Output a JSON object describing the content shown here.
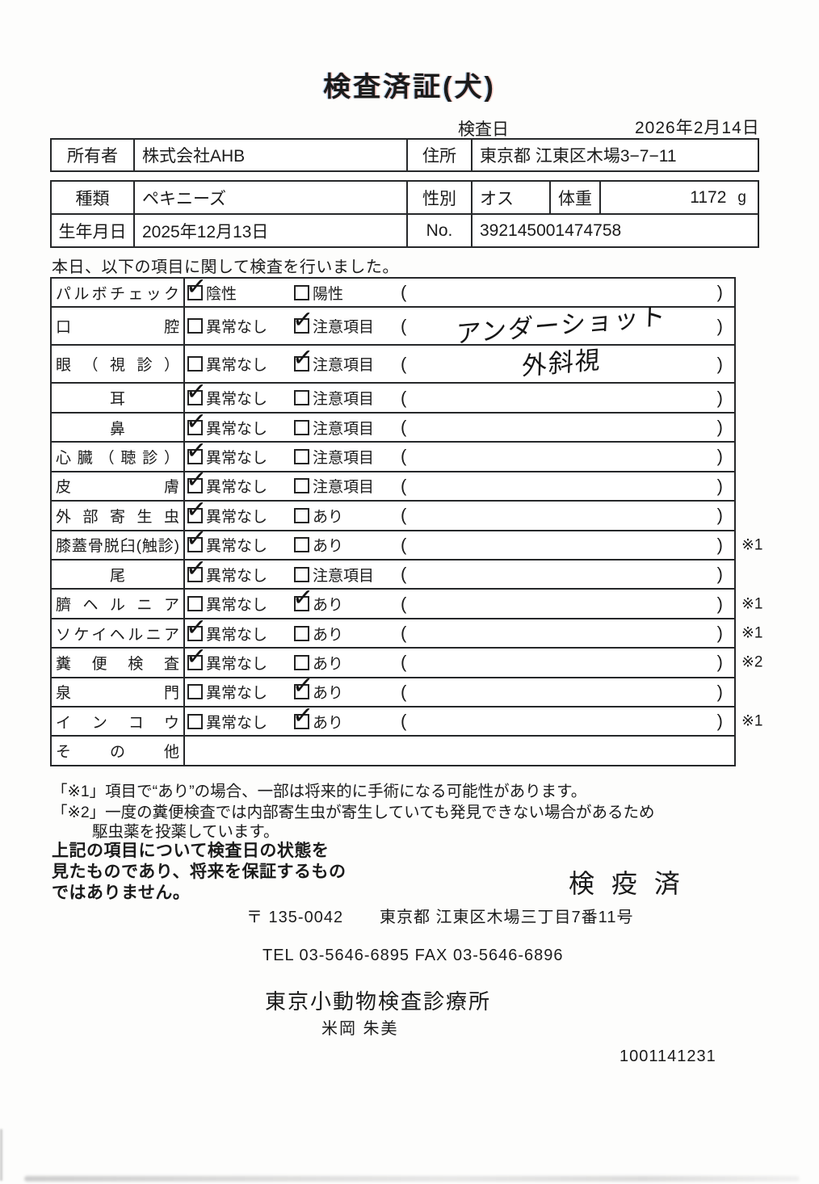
{
  "title": "検査済証(犬)",
  "inspection_date": {
    "label": "検査日",
    "value": "2026年2月14日"
  },
  "owner": {
    "owner_label": "所有者",
    "owner_value": "株式会社AHB",
    "address_label": "住所",
    "address_value": "東京都 江東区木場3−7−11"
  },
  "info": {
    "breed_label": "種類",
    "breed_value": "ペキニーズ",
    "sex_label": "性別",
    "sex_value": "オス",
    "weight_label": "体重",
    "weight_value": "1172",
    "weight_unit": "g",
    "birth_label": "生年月日",
    "birth_value": "2025年12月13日",
    "no_label": "No.",
    "no_value": "392145001474758"
  },
  "intro": "本日、以下の項目に関して検査を行いました。",
  "exam_table": {
    "rows": [
      {
        "label": "パルボチェック",
        "options": [
          {
            "label": "陰性",
            "checked": true
          },
          {
            "label": "陽性",
            "checked": false
          }
        ],
        "paren": "",
        "note": ""
      },
      {
        "label": "口腔",
        "options": [
          {
            "label": "異常なし",
            "checked": false
          },
          {
            "label": "注意項目",
            "checked": true
          }
        ],
        "paren": "アンダーショット",
        "handwritten": true,
        "note": ""
      },
      {
        "label": "眼（視診）",
        "options": [
          {
            "label": "異常なし",
            "checked": false
          },
          {
            "label": "注意項目",
            "checked": true
          }
        ],
        "paren": "外斜視",
        "handwritten": true,
        "note": ""
      },
      {
        "label": "耳",
        "options": [
          {
            "label": "異常なし",
            "checked": true
          },
          {
            "label": "注意項目",
            "checked": false
          }
        ],
        "paren": "",
        "note": ""
      },
      {
        "label": "鼻",
        "options": [
          {
            "label": "異常なし",
            "checked": true
          },
          {
            "label": "注意項目",
            "checked": false
          }
        ],
        "paren": "",
        "note": ""
      },
      {
        "label": "心臓（聴診）",
        "options": [
          {
            "label": "異常なし",
            "checked": true
          },
          {
            "label": "注意項目",
            "checked": false
          }
        ],
        "paren": "",
        "note": ""
      },
      {
        "label": "皮膚",
        "options": [
          {
            "label": "異常なし",
            "checked": true
          },
          {
            "label": "注意項目",
            "checked": false
          }
        ],
        "paren": "",
        "note": ""
      },
      {
        "label": "外部寄生虫",
        "options": [
          {
            "label": "異常なし",
            "checked": true
          },
          {
            "label": "あり",
            "checked": false
          }
        ],
        "paren": "",
        "note": ""
      },
      {
        "label": "膝蓋骨脱臼(触診)",
        "options": [
          {
            "label": "異常なし",
            "checked": true
          },
          {
            "label": "あり",
            "checked": false
          }
        ],
        "paren": "",
        "note": "※1"
      },
      {
        "label": "尾",
        "options": [
          {
            "label": "異常なし",
            "checked": true
          },
          {
            "label": "注意項目",
            "checked": false
          }
        ],
        "paren": "",
        "note": ""
      },
      {
        "label": "臍ヘルニア",
        "options": [
          {
            "label": "異常なし",
            "checked": false
          },
          {
            "label": "あり",
            "checked": true
          }
        ],
        "paren": "",
        "note": "※1"
      },
      {
        "label": "ソケイヘルニア",
        "options": [
          {
            "label": "異常なし",
            "checked": true
          },
          {
            "label": "あり",
            "checked": false
          }
        ],
        "paren": "",
        "note": "※1"
      },
      {
        "label": "糞便検査",
        "options": [
          {
            "label": "異常なし",
            "checked": true
          },
          {
            "label": "あり",
            "checked": false
          }
        ],
        "paren": "",
        "note": "※2"
      },
      {
        "label": "泉門",
        "options": [
          {
            "label": "異常なし",
            "checked": false
          },
          {
            "label": "あり",
            "checked": true
          }
        ],
        "paren": "",
        "note": ""
      },
      {
        "label": "インコウ",
        "options": [
          {
            "label": "異常なし",
            "checked": false
          },
          {
            "label": "あり",
            "checked": true
          }
        ],
        "paren": "",
        "note": "※1"
      },
      {
        "label": "その他",
        "options": [],
        "paren": null,
        "note": ""
      }
    ]
  },
  "notes": [
    "「※1」項目で“あり”の場合、一部は将来的に手術になる可能性があります。",
    "「※2」一度の糞便検査では内部寄生虫が寄生していても発見できない場合があるため",
    "駆虫薬を投薬しています。"
  ],
  "disclaimer": [
    "上記の項目について検査日の状態を",
    "見たものであり、将来を保証するもの",
    "ではありません。"
  ],
  "stamp": "検 疫 済",
  "clinic": {
    "postal": "〒 135-0042",
    "address": "東京都 江東区木場三丁目7番11号",
    "telfax": "TEL 03-5646-6895  FAX 03-5646-6896",
    "name": "東京小動物検査診療所",
    "examiner": "米岡 朱美",
    "serial": "1001141231"
  }
}
